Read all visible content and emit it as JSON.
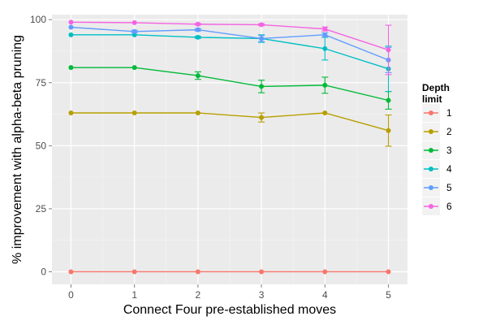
{
  "chart_data": {
    "type": "line",
    "title": "",
    "xlabel": "Connect Four pre-established moves",
    "ylabel": "% improvement with alpha-beta pruning",
    "x": [
      0,
      1,
      2,
      3,
      4,
      5
    ],
    "x_ticks": [
      "0",
      "1",
      "2",
      "3",
      "4",
      "5"
    ],
    "y_ticks": [
      "0",
      "25",
      "50",
      "75",
      "100"
    ],
    "xlim": [
      -0.3,
      5.3
    ],
    "ylim": [
      -5,
      102
    ],
    "grid": true,
    "legend_position": "right",
    "legend_title": "Depth\nlimit",
    "series": [
      {
        "name": "1",
        "color": "#F8766D",
        "values": [
          0,
          0,
          0,
          0,
          0,
          0
        ],
        "err": [
          0,
          0,
          0,
          0,
          0,
          0
        ]
      },
      {
        "name": "2",
        "color": "#B79F00",
        "values": [
          63,
          63,
          63,
          61.2,
          63,
          56
        ],
        "err": [
          0,
          0,
          0,
          1.8,
          0,
          6.2
        ]
      },
      {
        "name": "3",
        "color": "#00BA38",
        "values": [
          81,
          81,
          77.8,
          73.5,
          74,
          68
        ],
        "err": [
          0,
          0,
          1.5,
          2.5,
          3.2,
          3.5
        ]
      },
      {
        "name": "4",
        "color": "#00BFC4",
        "values": [
          94,
          94,
          93,
          92.5,
          88.5,
          80.5
        ],
        "err": [
          0,
          0,
          0.4,
          1.5,
          4.5,
          9
        ]
      },
      {
        "name": "5",
        "color": "#619CFF",
        "values": [
          97,
          95.3,
          96,
          92.5,
          94,
          84
        ],
        "err": [
          0,
          0.5,
          0.5,
          1.2,
          0.8,
          5
        ]
      },
      {
        "name": "6",
        "color": "#F564E3",
        "values": [
          99,
          98.8,
          98.2,
          98,
          96.3,
          88
        ],
        "err": [
          0,
          0,
          0.3,
          0.4,
          0.8,
          9.8
        ]
      }
    ]
  }
}
